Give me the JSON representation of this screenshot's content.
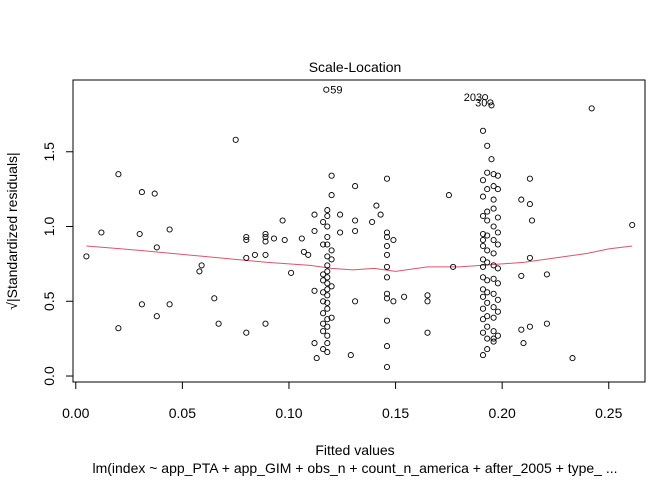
{
  "chart_data": {
    "type": "scatter",
    "title": "Scale-Location",
    "xlabel": "Fitted values",
    "ylabel": "√|Standardized residuals|",
    "subtitle": "lm(index ~ app_PTA + app_GIM + obs_n + count_n_america + after_2005 + type_ ...",
    "xlim": [
      -0.0013,
      0.267
    ],
    "ylim": [
      -0.04,
      1.98
    ],
    "x_ticks": [
      0.0,
      0.05,
      0.1,
      0.15,
      0.2,
      0.25
    ],
    "x_tick_labels": [
      "0.00",
      "0.05",
      "0.10",
      "0.15",
      "0.20",
      "0.25"
    ],
    "y_ticks": [
      0.0,
      0.5,
      1.0,
      1.5
    ],
    "y_tick_labels": [
      "0.0",
      "0.5",
      "1.0",
      "1.5"
    ],
    "point_color": "#000000",
    "smooth_color": "#DF536B",
    "labeled_points": [
      {
        "label": "59",
        "x": 0.1175,
        "y": 1.915
      },
      {
        "label": "203",
        "x": 0.192,
        "y": 1.865
      },
      {
        "label": "30",
        "x": 0.1945,
        "y": 1.83
      }
    ],
    "points": [
      [
        0.005,
        0.8
      ],
      [
        0.012,
        0.96
      ],
      [
        0.02,
        1.35
      ],
      [
        0.02,
        0.32
      ],
      [
        0.03,
        0.95
      ],
      [
        0.031,
        1.23
      ],
      [
        0.031,
        0.48
      ],
      [
        0.037,
        1.22
      ],
      [
        0.038,
        0.86
      ],
      [
        0.038,
        0.4
      ],
      [
        0.044,
        0.98
      ],
      [
        0.044,
        0.48
      ],
      [
        0.058,
        0.7
      ],
      [
        0.059,
        0.74
      ],
      [
        0.065,
        0.52
      ],
      [
        0.067,
        0.35
      ],
      [
        0.075,
        1.58
      ],
      [
        0.08,
        0.93
      ],
      [
        0.08,
        0.91
      ],
      [
        0.08,
        0.79
      ],
      [
        0.08,
        0.29
      ],
      [
        0.084,
        0.81
      ],
      [
        0.089,
        0.95
      ],
      [
        0.089,
        0.93
      ],
      [
        0.089,
        0.9
      ],
      [
        0.089,
        0.81
      ],
      [
        0.089,
        0.35
      ],
      [
        0.093,
        0.92
      ],
      [
        0.097,
        1.04
      ],
      [
        0.098,
        0.91
      ],
      [
        0.101,
        0.69
      ],
      [
        0.106,
        0.92
      ],
      [
        0.107,
        0.83
      ],
      [
        0.109,
        0.81
      ],
      [
        0.112,
        1.08
      ],
      [
        0.112,
        0.97
      ],
      [
        0.112,
        0.57
      ],
      [
        0.112,
        0.22
      ],
      [
        0.113,
        0.12
      ],
      [
        0.116,
        1.03
      ],
      [
        0.116,
        0.88
      ],
      [
        0.116,
        0.68
      ],
      [
        0.116,
        0.64
      ],
      [
        0.116,
        0.56
      ],
      [
        0.116,
        0.5
      ],
      [
        0.116,
        0.42
      ],
      [
        0.116,
        0.35
      ],
      [
        0.116,
        0.3
      ],
      [
        0.116,
        0.18
      ],
      [
        0.118,
        1.11
      ],
      [
        0.118,
        1.07
      ],
      [
        0.118,
        1.0
      ],
      [
        0.118,
        0.93
      ],
      [
        0.118,
        0.88
      ],
      [
        0.118,
        0.8
      ],
      [
        0.118,
        0.74
      ],
      [
        0.118,
        0.7
      ],
      [
        0.118,
        0.66
      ],
      [
        0.118,
        0.62
      ],
      [
        0.118,
        0.58
      ],
      [
        0.118,
        0.54
      ],
      [
        0.118,
        0.49
      ],
      [
        0.118,
        0.45
      ],
      [
        0.118,
        0.38
      ],
      [
        0.118,
        0.33
      ],
      [
        0.118,
        0.27
      ],
      [
        0.118,
        0.22
      ],
      [
        0.118,
        0.16
      ],
      [
        0.12,
        1.34
      ],
      [
        0.12,
        1.21
      ],
      [
        0.12,
        0.84
      ],
      [
        0.12,
        0.78
      ],
      [
        0.12,
        0.6
      ],
      [
        0.12,
        0.39
      ],
      [
        0.124,
        1.08
      ],
      [
        0.124,
        0.96
      ],
      [
        0.129,
        0.14
      ],
      [
        0.131,
        1.27
      ],
      [
        0.131,
        1.04
      ],
      [
        0.131,
        0.97
      ],
      [
        0.131,
        0.5
      ],
      [
        0.139,
        1.03
      ],
      [
        0.141,
        1.14
      ],
      [
        0.143,
        1.08
      ],
      [
        0.146,
        1.32
      ],
      [
        0.146,
        0.96
      ],
      [
        0.146,
        0.93
      ],
      [
        0.146,
        0.87
      ],
      [
        0.146,
        0.81
      ],
      [
        0.146,
        0.73
      ],
      [
        0.146,
        0.66
      ],
      [
        0.146,
        0.55
      ],
      [
        0.146,
        0.52
      ],
      [
        0.146,
        0.37
      ],
      [
        0.146,
        0.2
      ],
      [
        0.146,
        0.06
      ],
      [
        0.149,
        0.91
      ],
      [
        0.149,
        0.5
      ],
      [
        0.154,
        0.53
      ],
      [
        0.165,
        0.54
      ],
      [
        0.165,
        0.5
      ],
      [
        0.165,
        0.29
      ],
      [
        0.175,
        1.21
      ],
      [
        0.177,
        0.73
      ],
      [
        0.191,
        1.64
      ],
      [
        0.191,
        1.31
      ],
      [
        0.191,
        1.2
      ],
      [
        0.191,
        1.07
      ],
      [
        0.191,
        0.95
      ],
      [
        0.191,
        0.91
      ],
      [
        0.191,
        0.87
      ],
      [
        0.191,
        0.78
      ],
      [
        0.191,
        0.73
      ],
      [
        0.191,
        0.66
      ],
      [
        0.191,
        0.58
      ],
      [
        0.191,
        0.53
      ],
      [
        0.191,
        0.45
      ],
      [
        0.191,
        0.38
      ],
      [
        0.191,
        0.29
      ],
      [
        0.191,
        0.14
      ],
      [
        0.193,
        1.54
      ],
      [
        0.193,
        1.36
      ],
      [
        0.193,
        1.25
      ],
      [
        0.193,
        1.1
      ],
      [
        0.193,
        1.04
      ],
      [
        0.193,
        0.94
      ],
      [
        0.193,
        0.84
      ],
      [
        0.193,
        0.76
      ],
      [
        0.193,
        0.64
      ],
      [
        0.193,
        0.56
      ],
      [
        0.193,
        0.49
      ],
      [
        0.193,
        0.4
      ],
      [
        0.193,
        0.33
      ],
      [
        0.193,
        0.25
      ],
      [
        0.193,
        0.18
      ],
      [
        0.195,
        1.81
      ],
      [
        0.195,
        1.45
      ],
      [
        0.196,
        1.35
      ],
      [
        0.196,
        1.27
      ],
      [
        0.196,
        1.18
      ],
      [
        0.196,
        1.12
      ],
      [
        0.196,
        1.0
      ],
      [
        0.196,
        0.91
      ],
      [
        0.196,
        0.82
      ],
      [
        0.196,
        0.74
      ],
      [
        0.196,
        0.65
      ],
      [
        0.196,
        0.55
      ],
      [
        0.196,
        0.46
      ],
      [
        0.196,
        0.39
      ],
      [
        0.196,
        0.3
      ],
      [
        0.196,
        0.25
      ],
      [
        0.196,
        0.23
      ],
      [
        0.198,
        1.34
      ],
      [
        0.198,
        1.25
      ],
      [
        0.198,
        1.06
      ],
      [
        0.198,
        0.96
      ],
      [
        0.198,
        0.88
      ],
      [
        0.198,
        0.72
      ],
      [
        0.198,
        0.62
      ],
      [
        0.198,
        0.51
      ],
      [
        0.198,
        0.43
      ],
      [
        0.198,
        0.27
      ],
      [
        0.209,
        1.18
      ],
      [
        0.209,
        0.67
      ],
      [
        0.209,
        0.31
      ],
      [
        0.21,
        0.22
      ],
      [
        0.213,
        1.32
      ],
      [
        0.213,
        1.15
      ],
      [
        0.213,
        0.79
      ],
      [
        0.213,
        0.33
      ],
      [
        0.214,
        1.04
      ],
      [
        0.221,
        0.68
      ],
      [
        0.221,
        0.35
      ],
      [
        0.233,
        0.12
      ],
      [
        0.242,
        1.79
      ],
      [
        0.261,
        1.01
      ]
    ],
    "smooth": [
      [
        0.005,
        0.87
      ],
      [
        0.03,
        0.84
      ],
      [
        0.06,
        0.8
      ],
      [
        0.09,
        0.76
      ],
      [
        0.11,
        0.74
      ],
      [
        0.12,
        0.72
      ],
      [
        0.13,
        0.71
      ],
      [
        0.14,
        0.72
      ],
      [
        0.15,
        0.7
      ],
      [
        0.165,
        0.73
      ],
      [
        0.18,
        0.73
      ],
      [
        0.19,
        0.74
      ],
      [
        0.2,
        0.75
      ],
      [
        0.21,
        0.76
      ],
      [
        0.22,
        0.78
      ],
      [
        0.23,
        0.8
      ],
      [
        0.24,
        0.82
      ],
      [
        0.25,
        0.85
      ],
      [
        0.261,
        0.87
      ]
    ]
  }
}
